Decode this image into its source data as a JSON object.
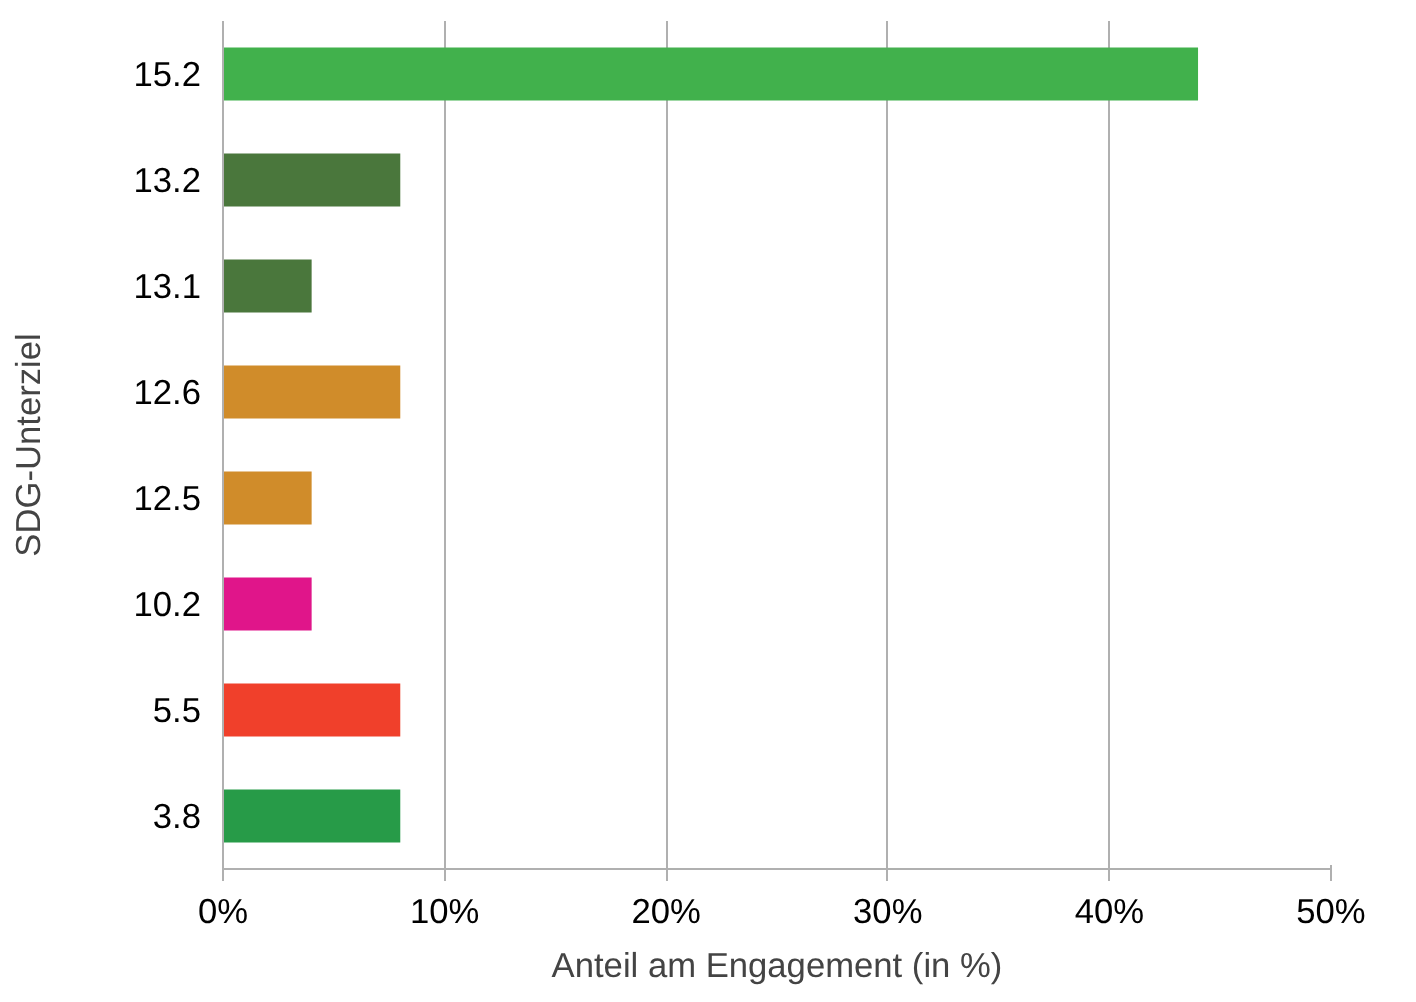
{
  "chart_data": {
    "type": "bar",
    "orientation": "horizontal",
    "xlabel": "Anteil am Engagement (in %)",
    "ylabel": "SDG-Unterziel",
    "categories": [
      "15.2",
      "13.2",
      "13.1",
      "12.6",
      "12.5",
      "10.2",
      "5.5",
      "3.8"
    ],
    "values": [
      44,
      8,
      4,
      8,
      4,
      4,
      8,
      8
    ],
    "colors": [
      "#41b14c",
      "#4a773c",
      "#4a773c",
      "#d08c2a",
      "#d08c2a",
      "#e0158a",
      "#f0402b",
      "#279b48"
    ],
    "xlim": [
      0,
      50
    ],
    "xticks": [
      {
        "value": 0,
        "label": "0%"
      },
      {
        "value": 10,
        "label": "10%"
      },
      {
        "value": 20,
        "label": "20%"
      },
      {
        "value": 30,
        "label": "30%"
      },
      {
        "value": 40,
        "label": "40%"
      },
      {
        "value": 50,
        "label": "50%"
      }
    ],
    "grid": "x"
  }
}
